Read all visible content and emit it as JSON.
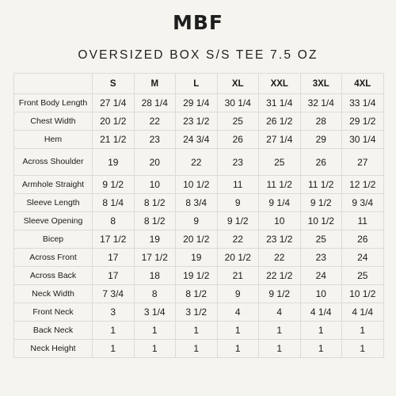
{
  "brand": "MBF",
  "title": "OVERSIZED BOX S/S TEE 7.5 OZ",
  "sizes": [
    "S",
    "M",
    "L",
    "XL",
    "XXL",
    "3XL",
    "4XL"
  ],
  "rows": [
    {
      "label": "Front Body Length",
      "values": [
        "27 1/4",
        "28 1/4",
        "29 1/4",
        "30 1/4",
        "31 1/4",
        "32 1/4",
        "33 1/4"
      ]
    },
    {
      "label": "Chest Width",
      "values": [
        "20 1/2",
        "22",
        "23 1/2",
        "25",
        "26 1/2",
        "28",
        "29 1/2"
      ]
    },
    {
      "label": "Hem",
      "values": [
        "21 1/2",
        "23",
        "24 3/4",
        "26",
        "27 1/4",
        "29",
        "30 1/4"
      ]
    },
    {
      "label": "Across Shoulder",
      "values": [
        "19",
        "20",
        "22",
        "23",
        "25",
        "26",
        "27"
      ]
    },
    {
      "label": "Armhole Straight",
      "values": [
        "9 1/2",
        "10",
        "10 1/2",
        "11",
        "11 1/2",
        "11 1/2",
        "12 1/2"
      ]
    },
    {
      "label": "Sleeve Length",
      "values": [
        "8 1/4",
        "8 1/2",
        "8 3/4",
        "9",
        "9 1/4",
        "9 1/2",
        "9 3/4"
      ]
    },
    {
      "label": "Sleeve Opening",
      "values": [
        "8",
        "8 1/2",
        "9",
        "9 1/2",
        "10",
        "10 1/2",
        "11"
      ]
    },
    {
      "label": "Bicep",
      "values": [
        "17 1/2",
        "19",
        "20 1/2",
        "22",
        "23 1/2",
        "25",
        "26"
      ]
    },
    {
      "label": "Across Front",
      "values": [
        "17",
        "17 1/2",
        "19",
        "20 1/2",
        "22",
        "23",
        "24"
      ]
    },
    {
      "label": "Across Back",
      "values": [
        "17",
        "18",
        "19 1/2",
        "21",
        "22 1/2",
        "24",
        "25"
      ]
    },
    {
      "label": "Neck Width",
      "values": [
        "7 3/4",
        "8",
        "8 1/2",
        "9",
        "9 1/2",
        "10",
        "10 1/2"
      ]
    },
    {
      "label": "Front Neck",
      "values": [
        "3",
        "3 1/4",
        "3 1/2",
        "4",
        "4",
        "4 1/4",
        "4 1/4"
      ]
    },
    {
      "label": "Back Neck",
      "values": [
        "1",
        "1",
        "1",
        "1",
        "1",
        "1",
        "1"
      ]
    },
    {
      "label": "Neck Height",
      "values": [
        "1",
        "1",
        "1",
        "1",
        "1",
        "1",
        "1"
      ]
    }
  ]
}
